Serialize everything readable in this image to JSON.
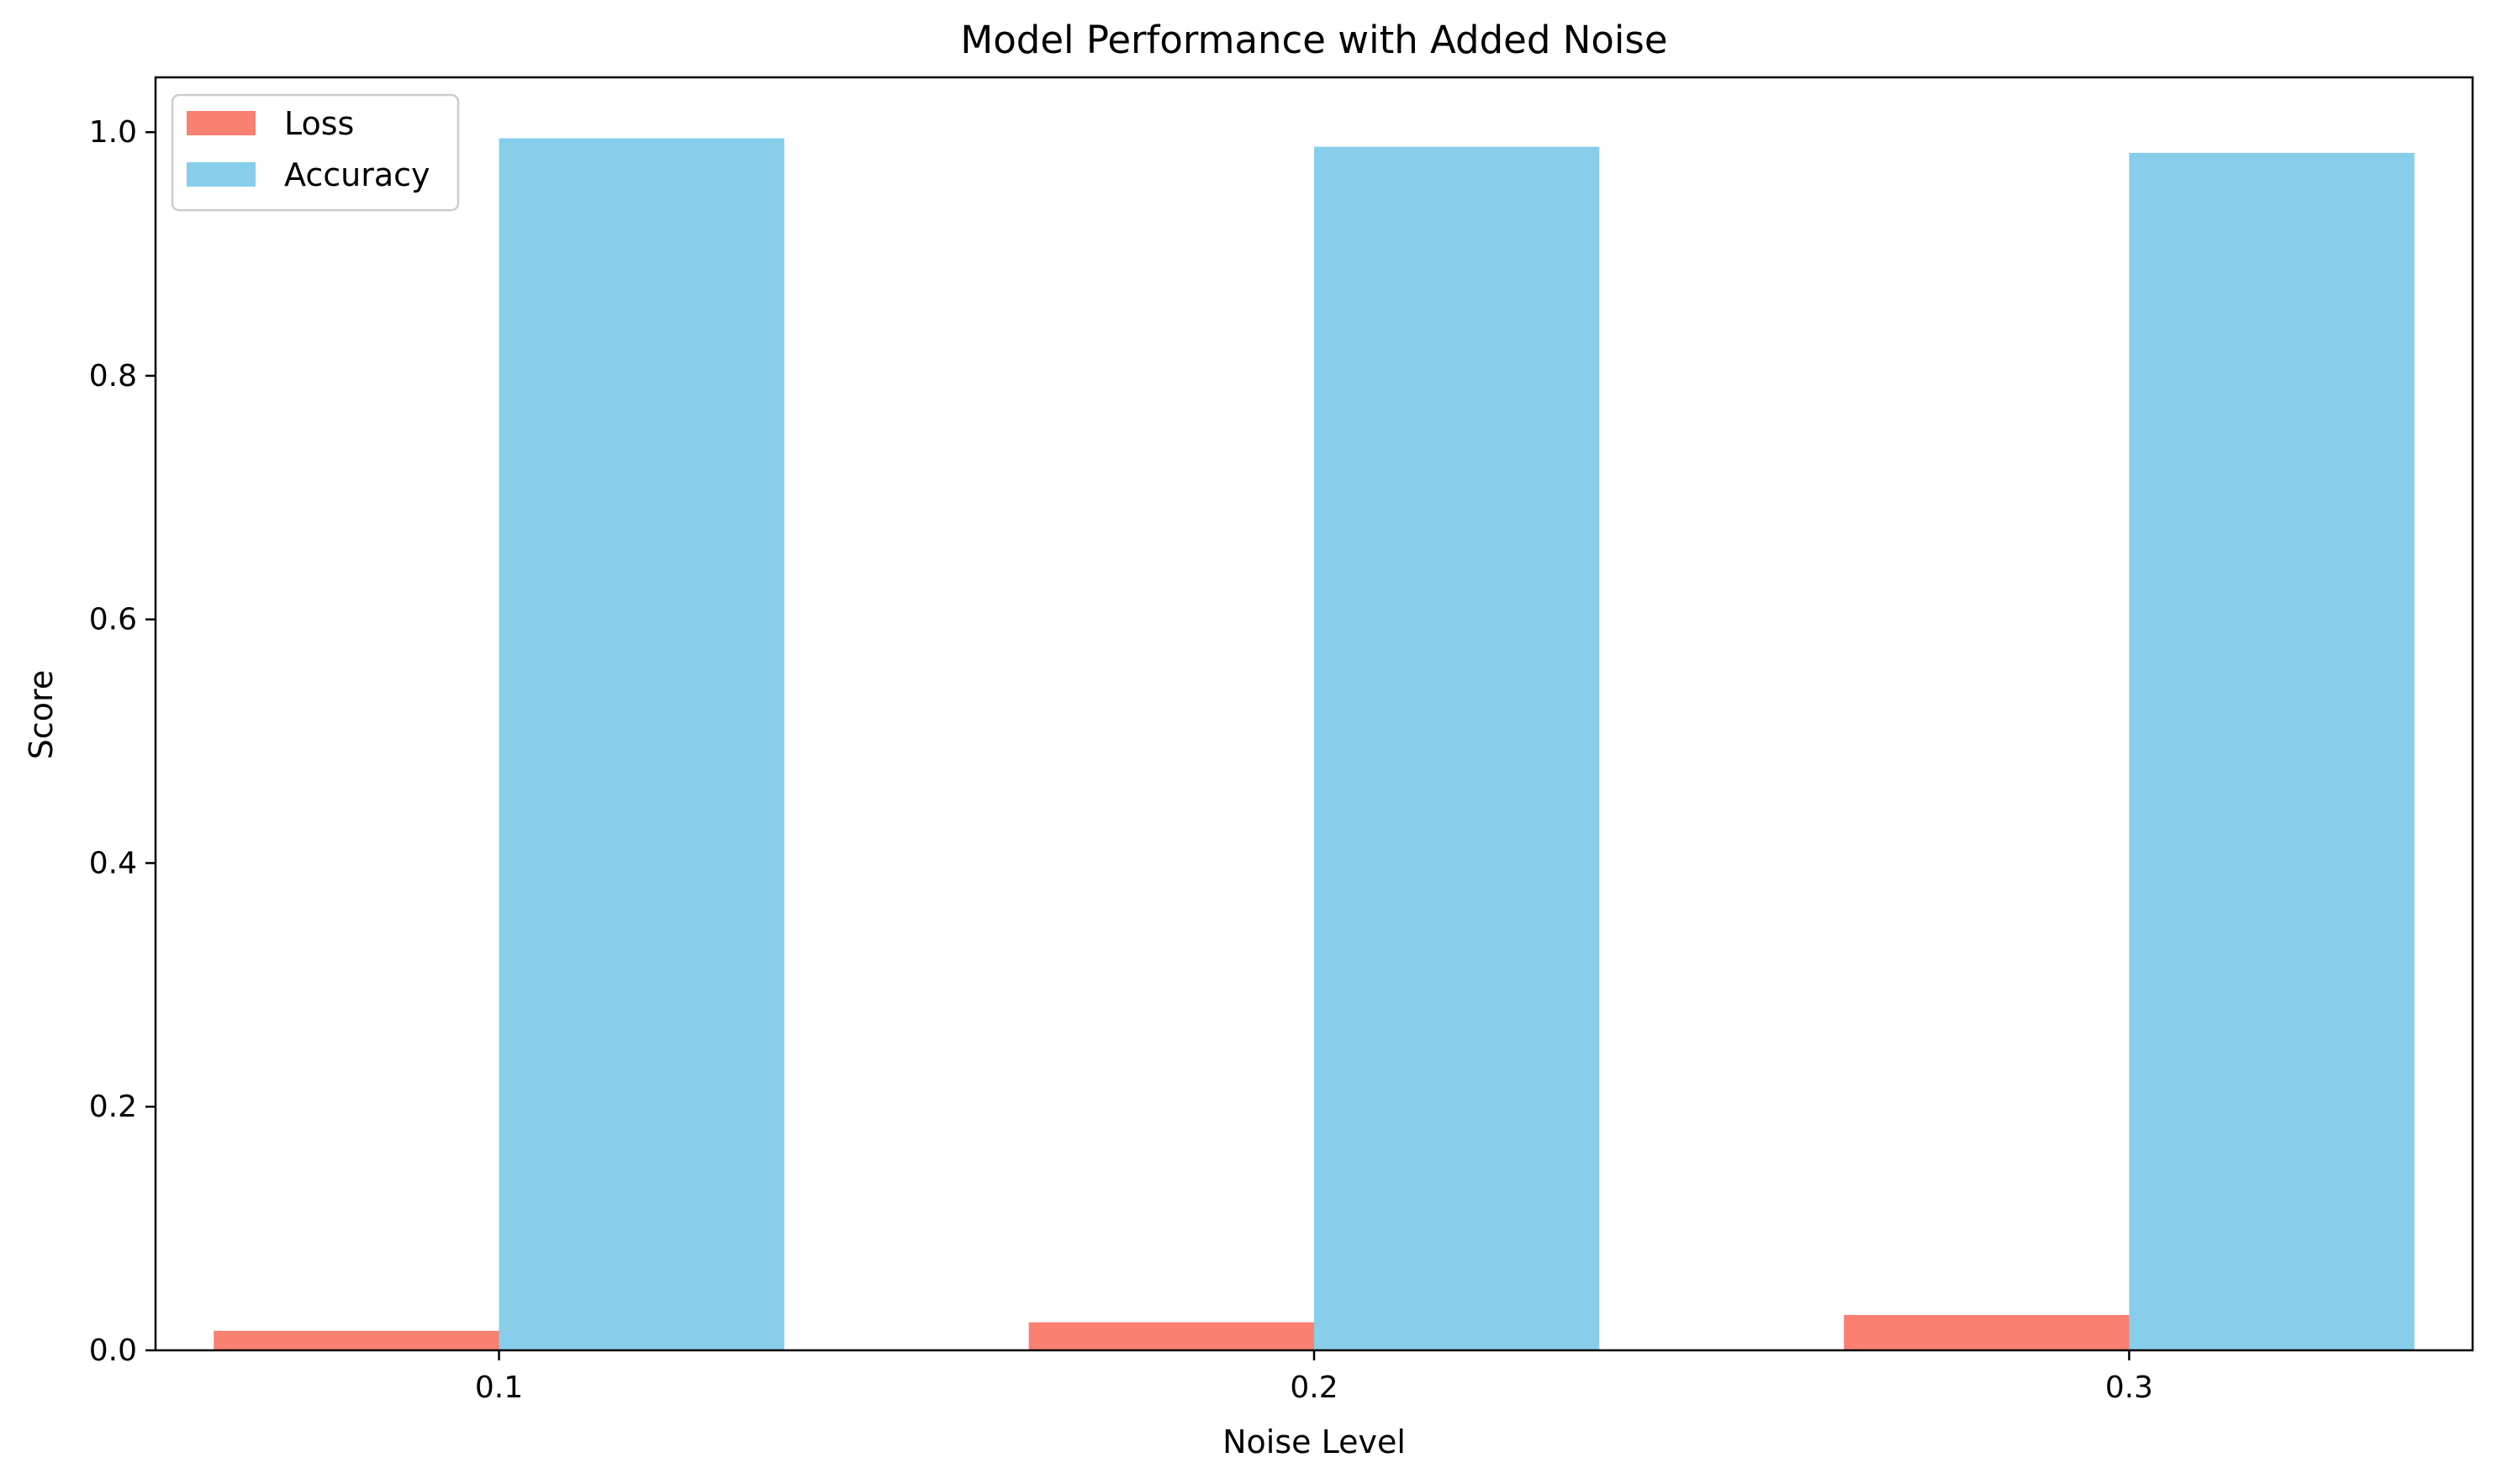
{
  "chart_data": {
    "type": "bar",
    "title": "Model Performance with Added Noise",
    "xlabel": "Noise Level",
    "ylabel": "Score",
    "categories": [
      "0.1",
      "0.2",
      "0.3"
    ],
    "series": [
      {
        "name": "Loss",
        "color": "#FA8072",
        "values": [
          0.016,
          0.023,
          0.029
        ]
      },
      {
        "name": "Accuracy",
        "color": "#87CEEB",
        "values": [
          0.995,
          0.988,
          0.983
        ]
      }
    ],
    "ylim": [
      0,
      1.045
    ],
    "yticks": [
      "0.0",
      "0.2",
      "0.4",
      "0.6",
      "0.8",
      "1.0"
    ],
    "grid": false,
    "legend_position": "upper-left"
  }
}
